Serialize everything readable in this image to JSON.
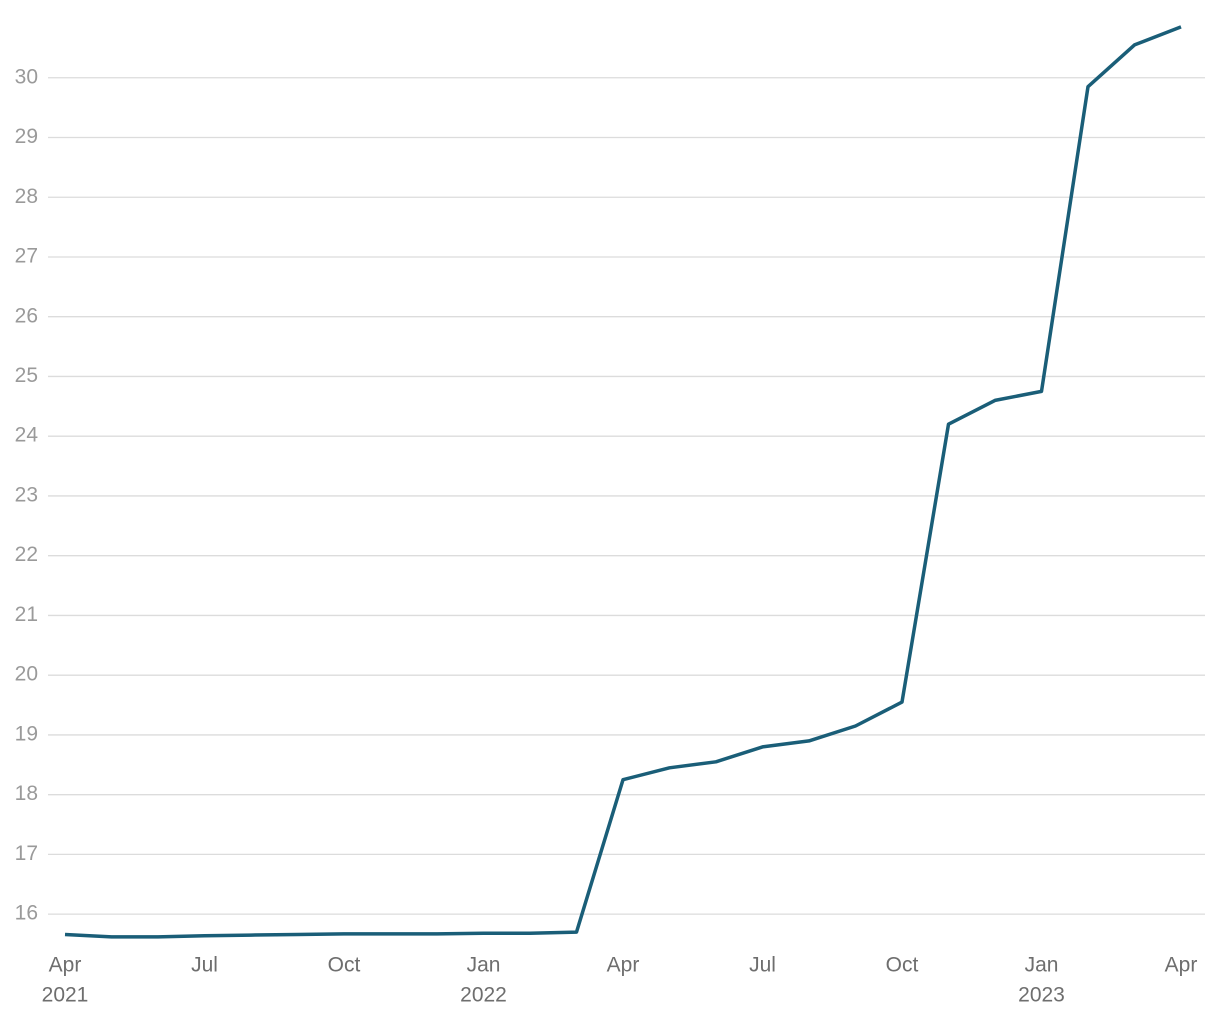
{
  "chart_data": {
    "type": "line",
    "x": [
      "2021-04",
      "2021-05",
      "2021-06",
      "2021-07",
      "2021-08",
      "2021-09",
      "2021-10",
      "2021-11",
      "2021-12",
      "2022-01",
      "2022-02",
      "2022-03",
      "2022-04",
      "2022-05",
      "2022-06",
      "2022-07",
      "2022-08",
      "2022-09",
      "2022-10",
      "2022-11",
      "2022-12",
      "2023-01",
      "2023-02",
      "2023-03",
      "2023-04"
    ],
    "series": [
      {
        "color": "#1a5e78",
        "values": [
          15.66,
          15.62,
          15.62,
          15.64,
          15.65,
          15.66,
          15.67,
          15.67,
          15.67,
          15.68,
          15.68,
          15.7,
          18.25,
          18.45,
          18.55,
          18.8,
          18.9,
          19.15,
          19.55,
          24.2,
          24.6,
          24.75,
          29.85,
          30.55,
          30.85
        ]
      }
    ],
    "xlim": [
      "2021-03",
      "2023-04"
    ],
    "xticks": [
      {
        "value": "2021-04",
        "label": "Apr",
        "sublabel": "2021"
      },
      {
        "value": "2021-07",
        "label": "Jul"
      },
      {
        "value": "2021-10",
        "label": "Oct"
      },
      {
        "value": "2022-01",
        "label": "Jan",
        "sublabel": "2022"
      },
      {
        "value": "2022-04",
        "label": "Apr"
      },
      {
        "value": "2022-07",
        "label": "Jul"
      },
      {
        "value": "2022-10",
        "label": "Oct"
      },
      {
        "value": "2023-01",
        "label": "Jan",
        "sublabel": "2023"
      },
      {
        "value": "2023-04",
        "label": "Apr"
      }
    ],
    "ylim": [
      15.4,
      31.05
    ],
    "yticks": [
      16,
      17,
      18,
      19,
      20,
      21,
      22,
      23,
      24,
      25,
      26,
      27,
      28,
      29,
      30
    ],
    "grid": true
  }
}
